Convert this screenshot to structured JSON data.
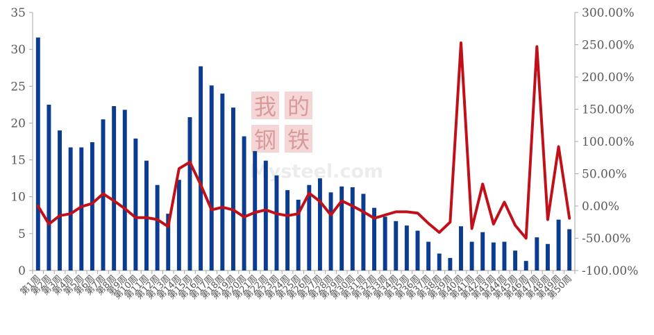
{
  "chart_data": {
    "type": "bar+line",
    "title": "",
    "watermark": {
      "logo_text": "我的钢铁",
      "site_text": "Mysteel.com",
      "color": "#e8b8b8"
    },
    "x": [
      "第1周",
      "第2周",
      "第3周",
      "第4周",
      "第5周",
      "第6周",
      "第7周",
      "第8周",
      "第9周",
      "第10周",
      "第11周",
      "第12周",
      "第13周",
      "第14周",
      "第15周",
      "第16周",
      "第17周",
      "第18周",
      "第19周",
      "第20周",
      "第21周",
      "第22周",
      "第23周",
      "第24周",
      "第25周",
      "第26周",
      "第27周",
      "第28周",
      "第29周",
      "第30周",
      "第31周",
      "第32周",
      "第33周",
      "第34周",
      "第35周",
      "第36周",
      "第37周",
      "第38周",
      "第39周",
      "第40周",
      "第41周",
      "第42周",
      "第43周",
      "第44周",
      "第45周",
      "第46周",
      "第47周",
      "第48周",
      "第49周",
      "第50周"
    ],
    "series": [
      {
        "name": "",
        "type": "bar",
        "axis": "left",
        "color": "#0b3c8f",
        "values": [
          31.6,
          22.5,
          19.0,
          16.7,
          16.7,
          17.4,
          20.5,
          22.3,
          21.8,
          17.9,
          14.9,
          11.6,
          7.7,
          12.3,
          20.8,
          27.7,
          25.1,
          24.0,
          22.1,
          18.2,
          16.2,
          14.9,
          12.9,
          10.9,
          9.6,
          11.6,
          12.5,
          10.6,
          11.4,
          11.3,
          10.4,
          8.5,
          7.3,
          6.7,
          6.1,
          5.4,
          3.9,
          2.3,
          1.7,
          6.0,
          3.9,
          5.2,
          3.8,
          3.9,
          2.7,
          1.3,
          4.5,
          3.6,
          6.9,
          5.6
        ]
      },
      {
        "name": "",
        "type": "line",
        "axis": "right",
        "color": "#c0101a",
        "values": [
          0,
          -28,
          -15,
          -12,
          -1,
          4,
          19,
          8,
          -4,
          -18,
          -18,
          -21,
          -32,
          58,
          68,
          33,
          -6,
          -2,
          -6,
          -17,
          -10,
          -6,
          -12,
          -15,
          -12,
          20,
          7,
          -14,
          8,
          0,
          -9,
          -19,
          -14,
          -9,
          -9,
          -11,
          -27,
          -41,
          -25,
          253,
          -35,
          34,
          -28,
          6,
          -30,
          -50,
          247,
          -21,
          92,
          -19
        ]
      }
    ],
    "y_left": {
      "min": 0,
      "max": 35,
      "ticks": [
        "0",
        "5",
        "10",
        "15",
        "20",
        "25",
        "30",
        "35"
      ]
    },
    "y_right": {
      "min": -100,
      "max": 300,
      "ticks": [
        "-100.00%",
        "-50.00%",
        "0.00%",
        "50.00%",
        "100.00%",
        "150.00%",
        "200.00%",
        "250.00%",
        "300.00%"
      ]
    },
    "grid": false,
    "legend": "none"
  }
}
